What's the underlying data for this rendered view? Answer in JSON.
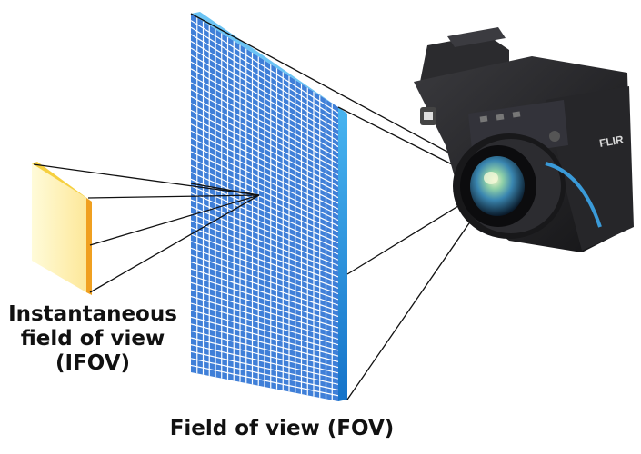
{
  "diagram": {
    "labels": {
      "ifov_line1": "Instantaneous",
      "ifov_line2": "field of view",
      "ifov_line3": "(IFOV)",
      "fov": "Field of view (FOV)"
    },
    "camera_brand": "FLIR",
    "colors": {
      "grid_face": "#3f7fd8",
      "grid_lines": "#ffffff",
      "grid_edge": "#1c8fe0",
      "ifov_face": "#fdeea6",
      "ifov_edge": "#f0a020",
      "rays": "#111111",
      "camera_body": "#1f1f22",
      "lens": "#6aa4c8"
    },
    "icons": [
      "thermal-camera-icon"
    ]
  }
}
